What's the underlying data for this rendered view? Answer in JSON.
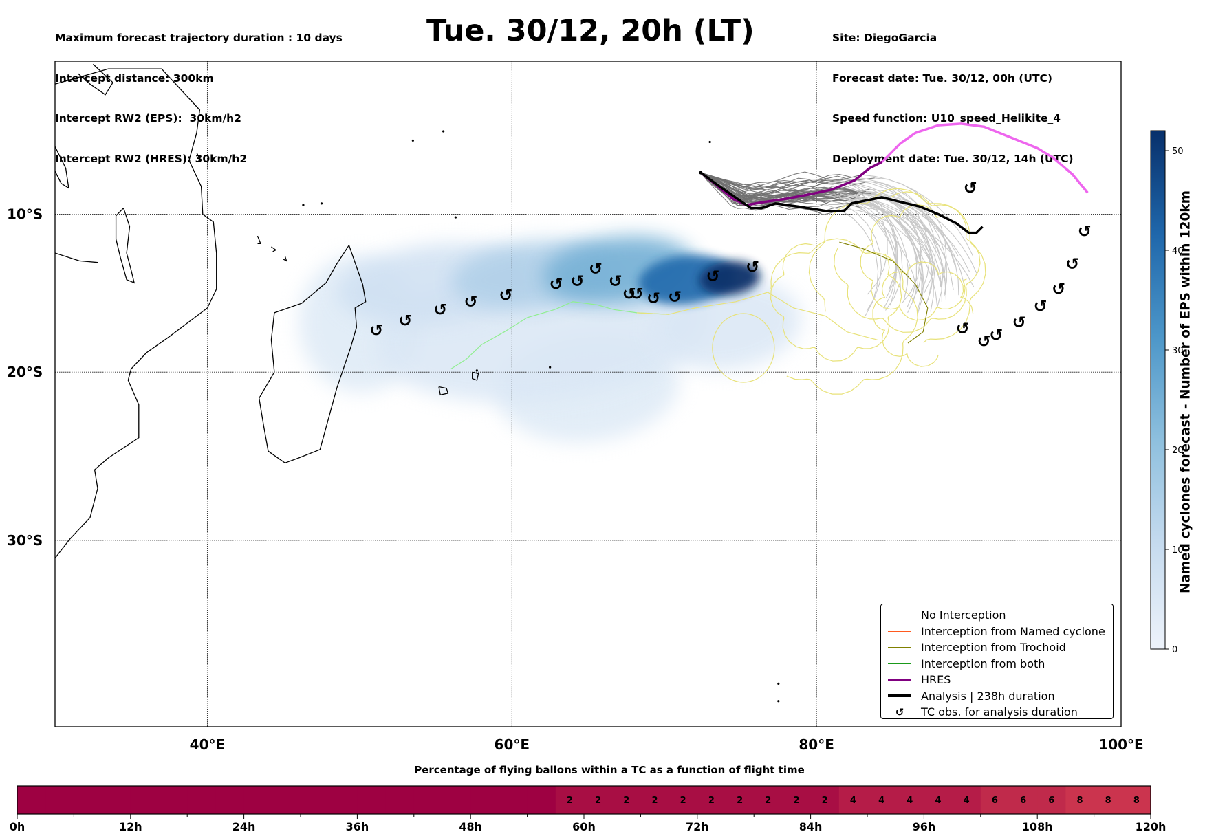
{
  "header": {
    "left_lines": [
      "Maximum forecast trajectory duration : 10 days",
      "Intercept distance: 300km",
      "Intercept RW2 (EPS):  30km/h2",
      "Intercept RW2 (HRES): 30km/h2"
    ],
    "title": "Tue. 30/12, 20h (LT)",
    "right_lines": [
      "Site: DiegoGarcia",
      "Forecast date: Tue. 30/12, 00h (UTC)",
      "Speed function: U10_speed_Helikite_4",
      "Deployment date: Tue. 30/12, 14h (UTC)"
    ]
  },
  "chart_data": [
    {
      "type": "map",
      "title": "Tue. 30/12, 20h (LT)",
      "projection": "mercator",
      "lon_range": [
        30,
        100
      ],
      "lat_range": [
        -40,
        0
      ],
      "grid": true,
      "x_ticks": [
        {
          "value": 40,
          "label": "40°E"
        },
        {
          "value": 60,
          "label": "60°E"
        },
        {
          "value": 80,
          "label": "80°E"
        },
        {
          "value": 100,
          "label": "100°E"
        }
      ],
      "y_ticks": [
        {
          "value": -10,
          "label": "10°S"
        },
        {
          "value": -20,
          "label": "20°S"
        },
        {
          "value": -30,
          "label": "30°S"
        }
      ],
      "legend_position": "lower-right",
      "legend": [
        {
          "label": "No Interception",
          "color": "#777777",
          "style": "thin"
        },
        {
          "label": "Interception from Named cyclone",
          "color": "#ff5a1f",
          "style": "thin"
        },
        {
          "label": "Interception from Trochoid",
          "color": "#808000",
          "style": "thin"
        },
        {
          "label": "Interception from both",
          "color": "#1a9a1a",
          "style": "thin"
        },
        {
          "label": "HRES",
          "color": "#800080",
          "style": "thick"
        },
        {
          "label": "Analysis | 238h duration",
          "color": "#000000",
          "style": "thick"
        },
        {
          "label": "TC obs. for analysis duration",
          "color": "#000000",
          "style": "marker"
        }
      ],
      "deployment_site": {
        "lon": 72.4,
        "lat": -7.3
      },
      "hres_track": [
        [
          72.4,
          -7.3
        ],
        [
          73.3,
          -8.0
        ],
        [
          74.5,
          -9.0
        ],
        [
          75.4,
          -9.4
        ],
        [
          76.6,
          -9.2
        ],
        [
          78.0,
          -9.0
        ],
        [
          79.6,
          -8.7
        ],
        [
          81.0,
          -8.4
        ],
        [
          82.5,
          -7.8
        ],
        [
          83.5,
          -7.0
        ],
        [
          84.3,
          -6.6
        ]
      ],
      "hres_track_extended": [
        [
          84.3,
          -6.6
        ],
        [
          85.5,
          -5.4
        ],
        [
          86.5,
          -4.7
        ],
        [
          88.0,
          -4.2
        ],
        [
          89.5,
          -4.1
        ],
        [
          91.0,
          -4.3
        ],
        [
          92.5,
          -4.9
        ],
        [
          94.5,
          -5.7
        ],
        [
          95.5,
          -6.3
        ],
        [
          96.8,
          -7.4
        ],
        [
          97.8,
          -8.6
        ]
      ],
      "analysis_track": [
        [
          72.4,
          -7.3
        ],
        [
          73.5,
          -8.1
        ],
        [
          74.8,
          -9.0
        ],
        [
          75.7,
          -9.6
        ],
        [
          76.4,
          -9.6
        ],
        [
          77.3,
          -9.3
        ],
        [
          78.8,
          -9.5
        ],
        [
          80.7,
          -9.8
        ],
        [
          81.8,
          -9.8
        ],
        [
          82.3,
          -9.3
        ],
        [
          82.8,
          -9.2
        ],
        [
          83.3,
          -9.1
        ],
        [
          84.3,
          -8.9
        ],
        [
          85.5,
          -9.2
        ],
        [
          86.8,
          -9.5
        ],
        [
          88.0,
          -10.0
        ],
        [
          89.2,
          -10.6
        ],
        [
          90.0,
          -11.2
        ],
        [
          90.5,
          -11.2
        ],
        [
          90.9,
          -10.8
        ]
      ],
      "tc_obs": [
        [
          51.1,
          -17.4
        ],
        [
          53.0,
          -16.8
        ],
        [
          55.3,
          -16.1
        ],
        [
          57.3,
          -15.6
        ],
        [
          59.6,
          -15.2
        ],
        [
          62.9,
          -14.5
        ],
        [
          64.3,
          -14.3
        ],
        [
          65.5,
          -13.5
        ],
        [
          66.8,
          -14.3
        ],
        [
          67.7,
          -15.1
        ],
        [
          68.2,
          -15.1
        ],
        [
          69.3,
          -15.4
        ],
        [
          70.7,
          -15.3
        ],
        [
          73.2,
          -14.0
        ],
        [
          75.8,
          -13.4
        ],
        [
          90.1,
          -8.3
        ],
        [
          97.6,
          -11.1
        ],
        [
          96.8,
          -13.2
        ],
        [
          95.9,
          -14.8
        ],
        [
          94.7,
          -15.9
        ],
        [
          93.3,
          -16.9
        ],
        [
          91.8,
          -17.7
        ],
        [
          91.0,
          -18.1
        ],
        [
          89.6,
          -17.3
        ]
      ],
      "density_colorbar": {
        "label": "Named cyclones forecast - Number of EPS within 120km",
        "range": [
          0,
          52
        ],
        "ticks": [
          0,
          10,
          20,
          30,
          40,
          50
        ],
        "colormap": "Blues"
      },
      "density_blobs": [
        {
          "lon": 74.3,
          "lat": -14.1,
          "value": 52,
          "rx": 2.0,
          "ry": 1.1
        },
        {
          "lon": 71.5,
          "lat": -14.2,
          "value": 38,
          "rx": 3.2,
          "ry": 1.6
        },
        {
          "lon": 67.0,
          "lat": -13.6,
          "value": 22,
          "rx": 5.0,
          "ry": 2.2
        },
        {
          "lon": 61.5,
          "lat": -13.9,
          "value": 12,
          "rx": 5.5,
          "ry": 2.2
        },
        {
          "lon": 55.0,
          "lat": -14.5,
          "value": 6,
          "rx": 6.5,
          "ry": 2.6
        },
        {
          "lon": 62.0,
          "lat": -17.5,
          "value": 3,
          "rx": 11,
          "ry": 4.5
        },
        {
          "lon": 65.0,
          "lat": -21.0,
          "value": 2,
          "rx": 6,
          "ry": 3.5
        },
        {
          "lon": 50.0,
          "lat": -17.0,
          "value": 2,
          "rx": 4,
          "ry": 4.5
        },
        {
          "lon": 74.0,
          "lat": -17.0,
          "value": 3,
          "rx": 5,
          "ry": 3
        }
      ]
    },
    {
      "type": "heatmap",
      "title": "Percentage of flying ballons within a TC as a function of flight time",
      "xlabel": "",
      "x_range": [
        0,
        120
      ],
      "x_ticks": [
        "0h",
        "12h",
        "24h",
        "36h",
        "48h",
        "60h",
        "72h",
        "84h",
        "96h",
        "108h",
        "120h"
      ],
      "bin_hours": 3,
      "values": [
        0,
        0,
        0,
        0,
        0,
        0,
        0,
        0,
        0,
        0,
        0,
        0,
        0,
        0,
        0,
        0,
        0,
        0,
        0,
        2,
        2,
        2,
        2,
        2,
        2,
        2,
        2,
        2,
        2,
        4,
        4,
        4,
        4,
        4,
        6,
        6,
        6,
        8,
        8,
        8
      ],
      "show_label_if_nonzero": true
    }
  ]
}
